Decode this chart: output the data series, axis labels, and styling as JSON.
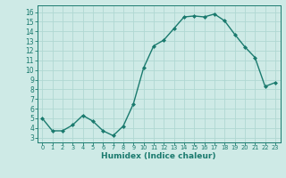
{
  "x": [
    0,
    1,
    2,
    3,
    4,
    5,
    6,
    7,
    8,
    9,
    10,
    11,
    12,
    13,
    14,
    15,
    16,
    17,
    18,
    19,
    20,
    21,
    22,
    23
  ],
  "y": [
    5.0,
    3.7,
    3.7,
    4.3,
    5.3,
    4.7,
    3.7,
    3.2,
    4.2,
    6.5,
    10.2,
    12.5,
    13.1,
    14.3,
    15.5,
    15.6,
    15.5,
    15.8,
    15.1,
    13.7,
    12.4,
    11.3,
    8.3,
    8.7
  ],
  "line_color": "#1a7a6e",
  "marker": "D",
  "marker_size": 2.0,
  "linewidth": 1.0,
  "xlabel": "Humidex (Indice chaleur)",
  "xlabel_fontsize": 6.5,
  "bg_color": "#ceeae6",
  "grid_color": "#b0d8d2",
  "axis_color": "#1a7a6e",
  "tick_label_color": "#1a7a6e",
  "xlabel_color": "#1a7a6e",
  "xlim": [
    -0.5,
    23.5
  ],
  "ylim": [
    2.5,
    16.7
  ],
  "yticks": [
    3,
    4,
    5,
    6,
    7,
    8,
    9,
    10,
    11,
    12,
    13,
    14,
    15,
    16
  ],
  "xticks": [
    0,
    1,
    2,
    3,
    4,
    5,
    6,
    7,
    8,
    9,
    10,
    11,
    12,
    13,
    14,
    15,
    16,
    17,
    18,
    19,
    20,
    21,
    22,
    23
  ]
}
